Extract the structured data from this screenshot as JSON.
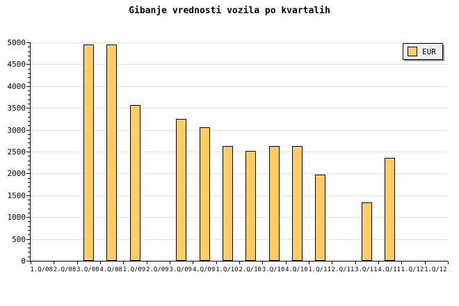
{
  "title": "Gibanje vrednosti vozila po kvartalih",
  "legend": {
    "label": "EUR",
    "swatch_color": "#FFCC66",
    "position": "top-right"
  },
  "colors": {
    "bar_fill": "#FFCC66",
    "bar_border": "#000000",
    "gridline": "#E2E2E2",
    "axis": "#000000",
    "background": "#FFFFFF",
    "legend_bg": "#F0F0F0",
    "legend_shadow": "#9A9A9A"
  },
  "chart_data": {
    "type": "bar",
    "title": "Gibanje vrednosti vozila po kvartalih",
    "categories": [
      "1.Q/08",
      "2.Q/08",
      "3.Q/08",
      "4.Q/08",
      "1.Q/09",
      "2.Q/09",
      "3.Q/09",
      "4.Q/09",
      "1.Q/10",
      "2.Q/10",
      "3.Q/10",
      "4.Q/10",
      "1.Q/11",
      "2.Q/11",
      "3.Q/11",
      "4.Q/11",
      "1.Q/12",
      "1.Q/12"
    ],
    "series": [
      {
        "name": "EUR",
        "values": [
          null,
          null,
          4950,
          4950,
          3560,
          null,
          3250,
          3050,
          2620,
          2520,
          2620,
          2620,
          1970,
          null,
          1340,
          2360,
          null,
          null
        ]
      }
    ],
    "xlabel": "",
    "ylabel": "",
    "ylim": [
      0,
      5000
    ],
    "ytick_step": 500,
    "ytick_minor_step": 100,
    "grid": "horizontal",
    "legend_position": "top-right"
  }
}
